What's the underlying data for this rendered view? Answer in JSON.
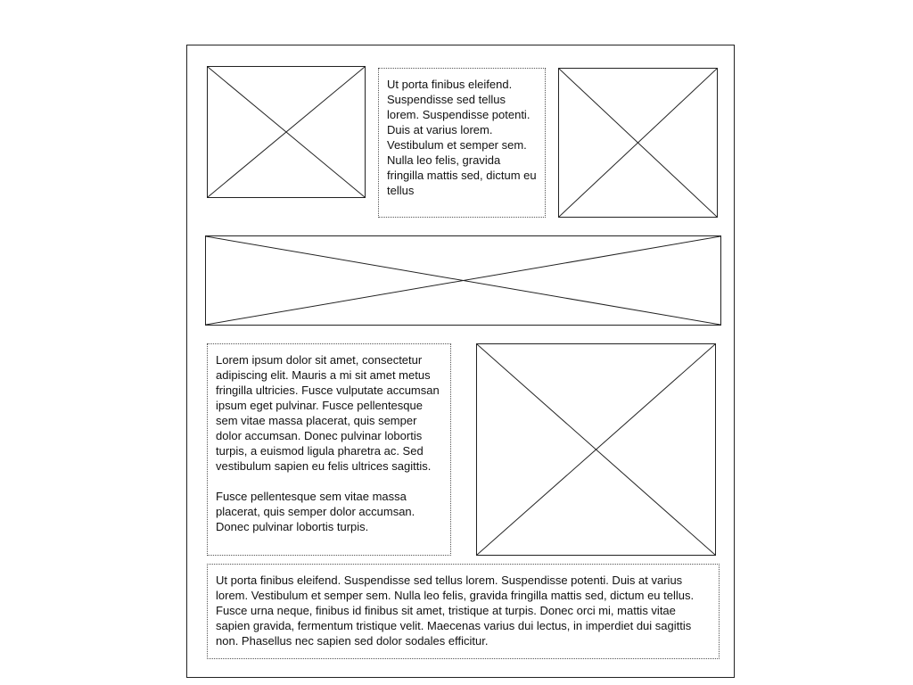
{
  "document": {
    "top_text": {
      "paragraph": "Ut porta finibus eleifend. Suspendisse sed tellus lorem. Suspendisse potenti. Duis at varius lorem. Vestibulum et semper sem. Nulla leo felis, gravida fringilla mattis sed, dictum eu tellus"
    },
    "middle_text": {
      "paragraphs": [
        "Lorem ipsum dolor sit amet, consectetur adipiscing elit. Mauris a mi sit amet metus fringilla ultricies. Fusce vulputate accumsan ipsum eget pulvinar. Fusce pellentesque sem vitae massa placerat, quis semper dolor accumsan. Donec pulvinar lobortis turpis, a euismod ligula pharetra ac. Sed vestibulum sapien eu felis ultrices sagittis.",
        "Fusce pellentesque sem vitae massa placerat, quis semper dolor accumsan. Donec pulvinar lobortis turpis."
      ]
    },
    "bottom_text": {
      "paragraph": "Ut porta finibus eleifend. Suspendisse sed tellus lorem. Suspendisse potenti. Duis at varius lorem. Vestibulum et semper sem. Nulla leo felis, gravida fringilla mattis sed, dictum eu tellus. Fusce urna neque, finibus id finibus sit amet, tristique at turpis. Donec orci mi, mattis vitae sapien gravida, fermentum tristique velit. Maecenas varius dui lectus, in imperdiet dui sagittis non. Phasellus nec sapien sed dolor sodales efficitur."
    }
  }
}
